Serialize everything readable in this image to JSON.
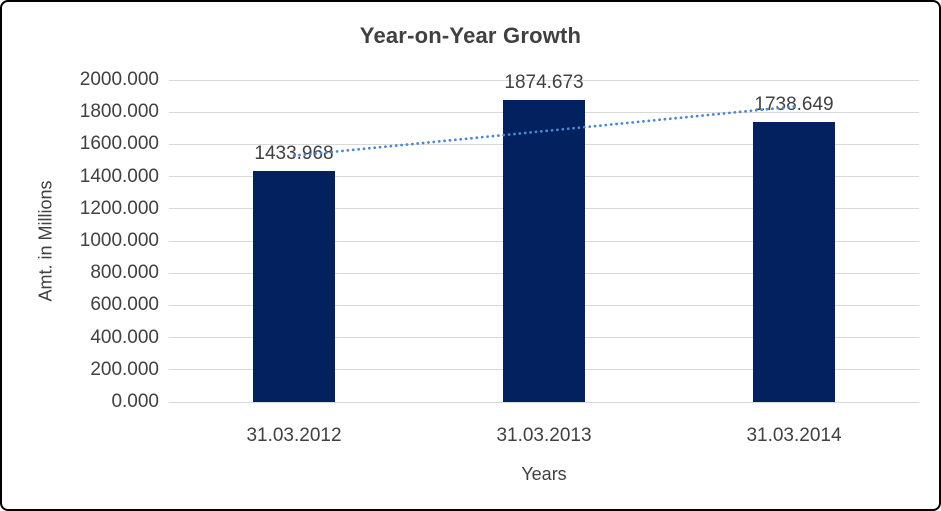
{
  "chart_data": {
    "type": "bar",
    "title": "Year-on-Year Growth",
    "xlabel": "Years",
    "ylabel": "Amt. in Millions",
    "categories": [
      "31.03.2012",
      "31.03.2013",
      "31.03.2014"
    ],
    "values": [
      1433.968,
      1874.673,
      1738.649
    ],
    "data_labels": [
      "1433.968",
      "1874.673",
      "1738.649"
    ],
    "y_ticks": [
      "2000.000",
      "1800.000",
      "1600.000",
      "1400.000",
      "1200.000",
      "1000.000",
      "800.000",
      "600.000",
      "400.000",
      "200.000",
      "0.000"
    ],
    "ylim": [
      0,
      2000
    ],
    "y_tick_step": 200,
    "grid": true,
    "legend": "none",
    "bar_color": "#03215f",
    "gridline_color": "#d9d9d9",
    "text_color": "#404040",
    "trendline": {
      "type": "linear",
      "style": "dotted",
      "color": "#4b88cc"
    }
  }
}
